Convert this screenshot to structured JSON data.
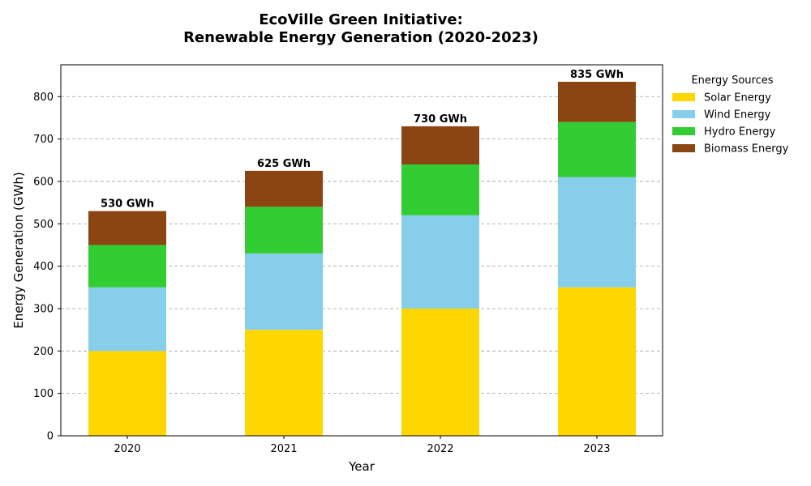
{
  "chart_data": {
    "type": "bar",
    "stacked": true,
    "title": [
      "EcoVille Green Initiative:",
      "Renewable Energy Generation (2020-2023)"
    ],
    "xlabel": "Year",
    "ylabel": "Energy Generation (GWh)",
    "categories": [
      "2020",
      "2021",
      "2022",
      "2023"
    ],
    "ylim": [
      0,
      875
    ],
    "yticks": [
      0,
      100,
      200,
      300,
      400,
      500,
      600,
      700,
      800
    ],
    "grid": "y-dashed",
    "legend": {
      "title": "Energy Sources",
      "placement": "outside-right-top"
    },
    "series": [
      {
        "name": "Solar Energy",
        "color": "#FFD700",
        "values": [
          200,
          250,
          300,
          350
        ]
      },
      {
        "name": "Wind Energy",
        "color": "#87CEEB",
        "values": [
          150,
          180,
          220,
          260
        ]
      },
      {
        "name": "Hydro Energy",
        "color": "#32CD32",
        "values": [
          100,
          110,
          120,
          130
        ]
      },
      {
        "name": "Biomass Energy",
        "color": "#8B4513",
        "values": [
          80,
          85,
          90,
          95
        ]
      }
    ],
    "totals": [
      "530 GWh",
      "625 GWh",
      "730 GWh",
      "835 GWh"
    ]
  }
}
